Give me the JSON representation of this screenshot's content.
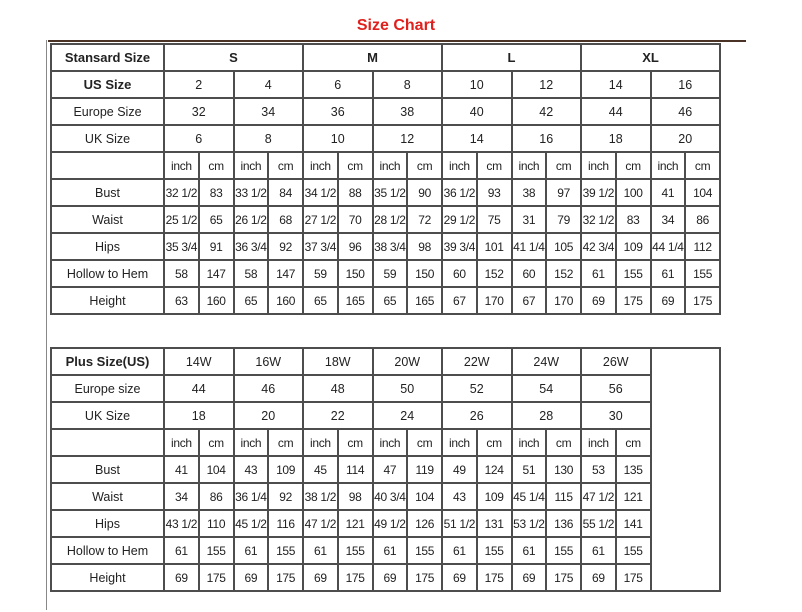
{
  "title": "Size Chart",
  "standard": {
    "header_label": "Stansard Size",
    "groups": [
      "S",
      "M",
      "L",
      "XL"
    ],
    "rows": [
      {
        "label": "US Size",
        "values": [
          "2",
          "4",
          "6",
          "8",
          "10",
          "12",
          "14",
          "16"
        ]
      },
      {
        "label": "Europe Size",
        "values": [
          "32",
          "34",
          "36",
          "38",
          "40",
          "42",
          "44",
          "46"
        ]
      },
      {
        "label": "UK Size",
        "values": [
          "6",
          "8",
          "10",
          "12",
          "14",
          "16",
          "18",
          "20"
        ]
      }
    ],
    "units": [
      "inch",
      "cm"
    ],
    "measurements": [
      {
        "label": "Bust",
        "values": [
          "32 1/2",
          "83",
          "33 1/2",
          "84",
          "34 1/2",
          "88",
          "35 1/2",
          "90",
          "36 1/2",
          "93",
          "38",
          "97",
          "39 1/2",
          "100",
          "41",
          "104"
        ]
      },
      {
        "label": "Waist",
        "values": [
          "25 1/2",
          "65",
          "26 1/2",
          "68",
          "27 1/2",
          "70",
          "28 1/2",
          "72",
          "29 1/2",
          "75",
          "31",
          "79",
          "32 1/2",
          "83",
          "34",
          "86"
        ]
      },
      {
        "label": "Hips",
        "values": [
          "35 3/4",
          "91",
          "36 3/4",
          "92",
          "37 3/4",
          "96",
          "38 3/4",
          "98",
          "39 3/4",
          "101",
          "41 1/4",
          "105",
          "42 3/4",
          "109",
          "44 1/4",
          "112"
        ]
      },
      {
        "label": "Hollow to Hem",
        "values": [
          "58",
          "147",
          "58",
          "147",
          "59",
          "150",
          "59",
          "150",
          "60",
          "152",
          "60",
          "152",
          "61",
          "155",
          "61",
          "155"
        ]
      },
      {
        "label": "Height",
        "values": [
          "63",
          "160",
          "65",
          "160",
          "65",
          "165",
          "65",
          "165",
          "67",
          "170",
          "67",
          "170",
          "69",
          "175",
          "69",
          "175"
        ]
      }
    ]
  },
  "plus": {
    "header_label": "Plus Size(US)",
    "sizes": [
      "14W",
      "16W",
      "18W",
      "20W",
      "22W",
      "24W",
      "26W"
    ],
    "rows": [
      {
        "label": "Europe size",
        "values": [
          "44",
          "46",
          "48",
          "50",
          "52",
          "54",
          "56"
        ]
      },
      {
        "label": "UK Size",
        "values": [
          "18",
          "20",
          "22",
          "24",
          "26",
          "28",
          "30"
        ]
      }
    ],
    "units": [
      "inch",
      "cm"
    ],
    "measurements": [
      {
        "label": "Bust",
        "values": [
          "41",
          "104",
          "43",
          "109",
          "45",
          "114",
          "47",
          "119",
          "49",
          "124",
          "51",
          "130",
          "53",
          "135"
        ]
      },
      {
        "label": "Waist",
        "values": [
          "34",
          "86",
          "36 1/4",
          "92",
          "38 1/2",
          "98",
          "40 3/4",
          "104",
          "43",
          "109",
          "45 1/4",
          "115",
          "47 1/2",
          "121"
        ]
      },
      {
        "label": "Hips",
        "values": [
          "43 1/2",
          "110",
          "45 1/2",
          "116",
          "47 1/2",
          "121",
          "49 1/2",
          "126",
          "51 1/2",
          "131",
          "53 1/2",
          "136",
          "55 1/2",
          "141"
        ]
      },
      {
        "label": "Hollow to Hem",
        "values": [
          "61",
          "155",
          "61",
          "155",
          "61",
          "155",
          "61",
          "155",
          "61",
          "155",
          "61",
          "155",
          "61",
          "155"
        ]
      },
      {
        "label": "Height",
        "values": [
          "69",
          "175",
          "69",
          "175",
          "69",
          "175",
          "69",
          "175",
          "69",
          "175",
          "69",
          "175",
          "69",
          "175"
        ]
      }
    ]
  }
}
